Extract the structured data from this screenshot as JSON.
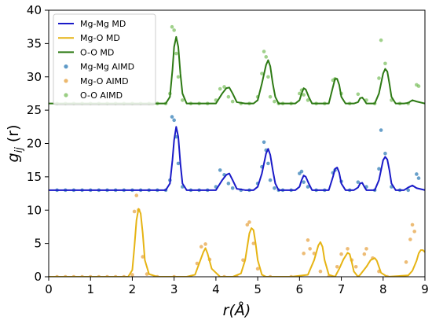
{
  "chart_data": {
    "type": "line",
    "xlabel": "r(Å)",
    "ylabel_main": "g",
    "ylabel_sub": "ij",
    "ylabel_tail": " (r)",
    "xlim": [
      0,
      9
    ],
    "ylim": [
      0,
      40
    ],
    "x_ticks": [
      0,
      1,
      2,
      3,
      4,
      5,
      6,
      7,
      8,
      9
    ],
    "y_ticks": [
      0,
      5,
      10,
      15,
      20,
      25,
      30,
      35,
      40
    ],
    "grid": false,
    "legend_position": "top-left",
    "series": [
      {
        "name": "Mg-Mg MD",
        "style": "line",
        "color": "#1a1ac8",
        "x": [
          0,
          2.8,
          2.9,
          2.96,
          3.0,
          3.05,
          3.1,
          3.15,
          3.2,
          3.3,
          3.5,
          4.0,
          4.15,
          4.25,
          4.32,
          4.4,
          4.5,
          4.7,
          4.9,
          5.0,
          5.1,
          5.2,
          5.25,
          5.3,
          5.36,
          5.42,
          5.5,
          5.7,
          5.9,
          6.0,
          6.05,
          6.1,
          6.15,
          6.22,
          6.3,
          6.5,
          6.7,
          6.8,
          6.85,
          6.9,
          6.95,
          7.0,
          7.1,
          7.3,
          7.4,
          7.45,
          7.5,
          7.55,
          7.6,
          7.8,
          7.9,
          8.0,
          8.05,
          8.1,
          8.15,
          8.2,
          8.3,
          8.5,
          8.6,
          8.7,
          8.8,
          9.0
        ],
        "y": [
          13,
          13,
          14,
          17.5,
          20.5,
          22.5,
          21,
          17,
          14,
          13,
          13,
          13,
          14.5,
          15.3,
          15.5,
          14.5,
          13.2,
          13,
          13,
          13.5,
          15.5,
          18.5,
          19.2,
          18.3,
          16,
          14,
          13,
          13,
          13,
          13.5,
          14.5,
          15.2,
          15,
          14,
          13,
          13,
          13,
          15,
          16.2,
          16.4,
          15.6,
          14,
          13,
          13,
          13.4,
          14,
          14.1,
          13.5,
          13,
          13,
          14.5,
          17.5,
          18,
          17.6,
          16,
          14,
          13,
          13,
          13.4,
          13.7,
          13.3,
          13
        ]
      },
      {
        "name": "Mg-O MD",
        "style": "line",
        "color": "#e6b414",
        "x": [
          0,
          1.9,
          2.0,
          2.05,
          2.1,
          2.15,
          2.2,
          2.25,
          2.3,
          2.4,
          2.6,
          3.3,
          3.5,
          3.6,
          3.7,
          3.75,
          3.8,
          3.9,
          4.1,
          4.4,
          4.6,
          4.7,
          4.8,
          4.85,
          4.9,
          4.95,
          5.0,
          5.1,
          5.2,
          5.8,
          6.2,
          6.35,
          6.45,
          6.5,
          6.55,
          6.6,
          6.7,
          6.85,
          6.95,
          7.05,
          7.15,
          7.2,
          7.25,
          7.3,
          7.4,
          7.45,
          7.6,
          7.7,
          7.8,
          7.85,
          7.95,
          8.1,
          8.6,
          8.7,
          8.8,
          8.85,
          8.9,
          8.95,
          9.0
        ],
        "y": [
          0,
          0,
          1,
          4.5,
          8.5,
          10.2,
          9.5,
          6.5,
          2.5,
          0.4,
          0,
          0,
          0.3,
          2,
          3.7,
          4.3,
          3.5,
          1.2,
          0,
          0,
          0.5,
          2.5,
          6.5,
          7.3,
          7,
          5,
          2.5,
          0.3,
          0,
          0,
          0.3,
          2.5,
          4.7,
          5.2,
          4.5,
          2.5,
          0.3,
          0,
          1.2,
          2.6,
          3.6,
          3.4,
          2.2,
          0.8,
          0,
          0.3,
          1.5,
          2.5,
          2.8,
          2.4,
          0.6,
          0,
          0.2,
          0.9,
          2.4,
          3.5,
          4,
          4,
          3.7
        ]
      },
      {
        "name": "O-O MD",
        "style": "line",
        "color": "#2d7a14",
        "x": [
          0,
          2.8,
          2.9,
          2.96,
          3.0,
          3.05,
          3.1,
          3.15,
          3.2,
          3.3,
          3.5,
          4.0,
          4.15,
          4.25,
          4.32,
          4.4,
          4.5,
          4.7,
          4.9,
          5.0,
          5.1,
          5.2,
          5.25,
          5.3,
          5.36,
          5.42,
          5.5,
          5.7,
          5.9,
          6.0,
          6.05,
          6.1,
          6.15,
          6.22,
          6.3,
          6.5,
          6.7,
          6.8,
          6.85,
          6.9,
          6.95,
          7.0,
          7.1,
          7.3,
          7.4,
          7.45,
          7.5,
          7.55,
          7.6,
          7.8,
          7.9,
          8.0,
          8.05,
          8.1,
          8.15,
          8.2,
          8.3,
          8.5,
          8.6,
          8.7,
          8.8,
          9.0
        ],
        "y": [
          26,
          26,
          27,
          31,
          34.5,
          36,
          34.5,
          30.5,
          27.5,
          26,
          26,
          26,
          27.5,
          28.3,
          28.4,
          27.5,
          26.2,
          26,
          26,
          26.5,
          29,
          31.8,
          32.5,
          31.6,
          29,
          27,
          26,
          26,
          26,
          26.5,
          27.5,
          28.3,
          28.1,
          27,
          26,
          26,
          26,
          28.5,
          29.7,
          29.7,
          28.8,
          27,
          26,
          26,
          26.2,
          26.8,
          26.9,
          26.5,
          26,
          26,
          27.5,
          30.5,
          31.2,
          30.8,
          29,
          27,
          26,
          26,
          26.1,
          26.5,
          26.3,
          26
        ]
      },
      {
        "name": "Mg-Mg AIMD",
        "style": "scatter",
        "color": "#2878b4",
        "x": [
          0.2,
          0.4,
          0.6,
          0.8,
          1.0,
          1.2,
          1.4,
          1.6,
          1.8,
          2.0,
          2.2,
          2.4,
          2.6,
          2.8,
          2.9,
          2.95,
          3.0,
          3.05,
          3.1,
          3.2,
          3.4,
          3.6,
          3.8,
          4.0,
          4.1,
          4.2,
          4.3,
          4.4,
          4.6,
          4.8,
          5.0,
          5.1,
          5.15,
          5.2,
          5.25,
          5.3,
          5.4,
          5.5,
          5.6,
          5.8,
          6.0,
          6.05,
          6.1,
          6.2,
          6.4,
          6.6,
          6.8,
          6.85,
          7.0,
          7.2,
          7.4,
          7.6,
          7.8,
          7.9,
          7.95,
          8.05,
          8.2,
          8.4,
          8.6,
          8.8,
          8.85
        ],
        "y": [
          13,
          13,
          13,
          13,
          13,
          13,
          13,
          13,
          13,
          13,
          13,
          13,
          13,
          13,
          14.5,
          24,
          23.5,
          21,
          17,
          13.5,
          13,
          13,
          13,
          13.5,
          16,
          15.3,
          14,
          13.3,
          13,
          13,
          14,
          16.5,
          20.2,
          19,
          17,
          14.5,
          13.3,
          13,
          13,
          13,
          15.5,
          15.8,
          14.2,
          13.5,
          13,
          13,
          15.6,
          16,
          14.3,
          13,
          14.2,
          13.5,
          13,
          16.2,
          22,
          18.5,
          13.5,
          13,
          13,
          15.4,
          14.8
        ]
      },
      {
        "name": "Mg-O AIMD",
        "style": "scatter",
        "color": "#e6a03c",
        "x": [
          0.2,
          0.4,
          0.6,
          0.8,
          1.0,
          1.2,
          1.4,
          1.6,
          1.8,
          2.0,
          2.05,
          2.1,
          2.15,
          2.25,
          2.35,
          2.6,
          3.0,
          3.4,
          3.55,
          3.65,
          3.75,
          3.85,
          4.2,
          4.5,
          4.65,
          4.75,
          4.8,
          4.9,
          5.0,
          5.3,
          5.8,
          6.1,
          6.2,
          6.25,
          6.35,
          6.5,
          6.7,
          6.9,
          7.0,
          7.15,
          7.25,
          7.35,
          7.55,
          7.6,
          7.75,
          7.9,
          8.1,
          8.55,
          8.65,
          8.7,
          8.75
        ],
        "y": [
          0,
          0,
          0,
          0,
          0,
          0,
          0,
          0,
          0,
          0.3,
          9.8,
          12.2,
          10,
          3,
          0.4,
          0,
          0,
          0,
          2,
          4.5,
          4.9,
          2.6,
          0,
          0,
          2.5,
          7.8,
          8.2,
          5,
          1.2,
          0,
          0,
          3.5,
          5.5,
          4.2,
          3.5,
          0.8,
          0,
          1.5,
          3.4,
          4.2,
          2.5,
          1.5,
          3.4,
          4.2,
          2.8,
          0.8,
          0,
          2.2,
          5.6,
          7.8,
          6.8
        ]
      },
      {
        "name": "O-O AIMD",
        "style": "scatter",
        "color": "#78be5a",
        "x": [
          0.2,
          0.4,
          0.6,
          0.8,
          1.0,
          1.2,
          1.4,
          1.6,
          1.8,
          2.0,
          2.2,
          2.4,
          2.6,
          2.8,
          2.9,
          2.95,
          3.0,
          3.05,
          3.1,
          3.2,
          3.4,
          3.6,
          3.8,
          4.0,
          4.1,
          4.2,
          4.3,
          4.4,
          4.6,
          4.8,
          5.0,
          5.1,
          5.15,
          5.2,
          5.25,
          5.3,
          5.4,
          5.5,
          5.6,
          5.8,
          6.0,
          6.05,
          6.1,
          6.2,
          6.4,
          6.6,
          6.8,
          6.85,
          7.0,
          7.2,
          7.4,
          7.6,
          7.8,
          7.9,
          7.95,
          8.05,
          8.2,
          8.4,
          8.6,
          8.8,
          8.85
        ],
        "y": [
          26,
          26,
          26,
          26,
          26,
          26,
          26,
          26,
          26,
          26,
          26,
          26,
          26,
          26,
          27.5,
          37.5,
          37,
          33.5,
          30,
          26.5,
          26,
          26,
          26,
          26.5,
          28.2,
          28.5,
          27,
          26.3,
          26,
          26,
          27,
          30.5,
          33.8,
          33,
          30,
          27,
          26.3,
          26,
          26,
          26,
          27.5,
          28,
          27.3,
          26.5,
          26,
          26,
          29.5,
          29.7,
          27.5,
          26,
          27.4,
          26.5,
          26,
          29.8,
          35.5,
          32,
          26.5,
          26,
          26,
          28.8,
          28.6
        ]
      }
    ]
  }
}
